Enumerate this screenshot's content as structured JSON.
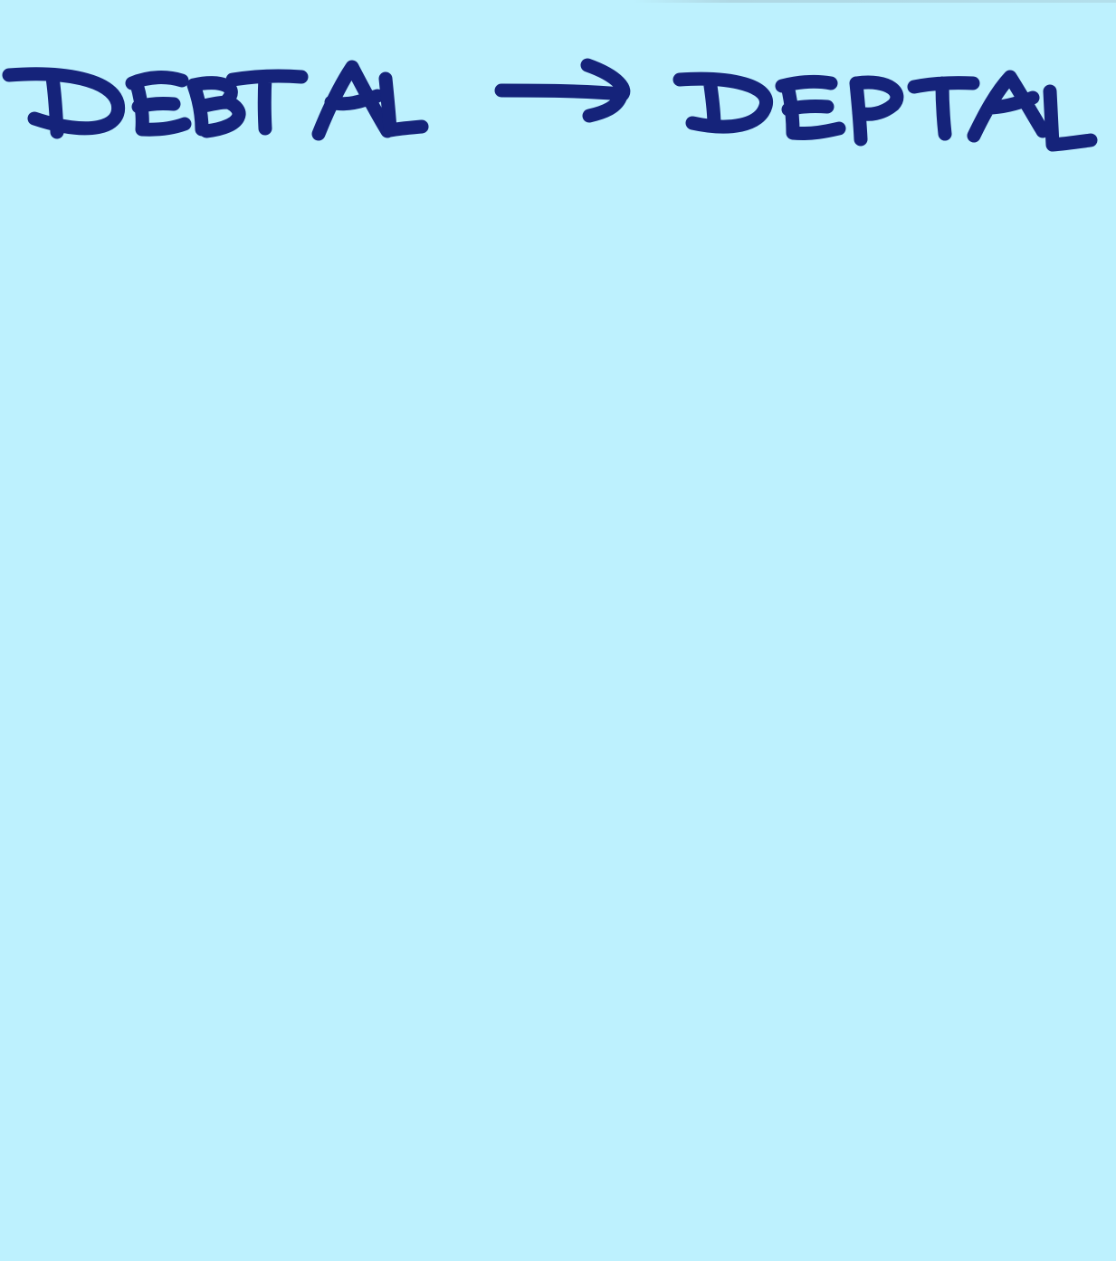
{
  "note": {
    "background_color": "#bdf1fe",
    "ink_color": "#15237a",
    "handwriting": {
      "from_word": "DEBTAL",
      "arrow_icon": "arrow-right-icon",
      "to_word": "DEPTAL"
    }
  }
}
